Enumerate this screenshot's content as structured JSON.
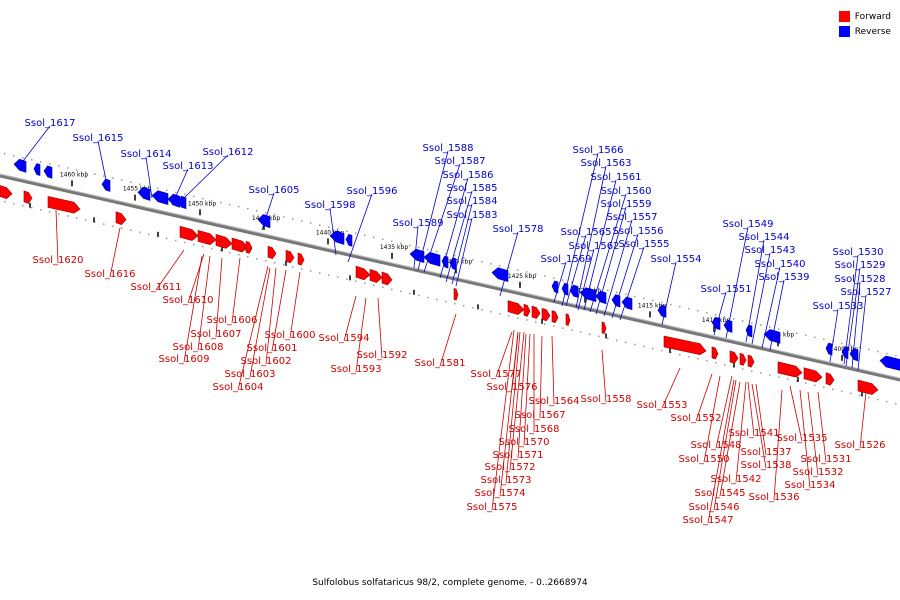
{
  "legend": [
    {
      "label": "Forward",
      "color": "#ff0000"
    },
    {
      "label": "Reverse",
      "color": "#0000ff"
    }
  ],
  "caption": "Sulfolobus solfataricus 98/2, complete genome. - 0..2668974",
  "colors": {
    "forward": "#ff0000",
    "reverse": "#0000ff",
    "axis": "#777777",
    "label_forward": "#cc0000",
    "label_reverse": "#0000cc"
  },
  "ticks": [
    "1460 kbp",
    "1455 kbp",
    "1450 kbp",
    "1445 kbp",
    "1440 kbp",
    "1435 kbp",
    "1430 kbp",
    "1425 kbp",
    "1420 kbp",
    "1415 kbp",
    "1410 kbp",
    "1405 kbp",
    "1400 kbp"
  ],
  "reverse_genes": [
    "Ssol_1617",
    "Ssol_1615",
    "Ssol_1614",
    "Ssol_1613",
    "Ssol_1612",
    "Ssol_1605",
    "Ssol_1598",
    "Ssol_1596",
    "Ssol_1589",
    "Ssol_1588",
    "Ssol_1587",
    "Ssol_1586",
    "Ssol_1585",
    "Ssol_1584",
    "Ssol_1583",
    "Ssol_1578",
    "Ssol_1569",
    "Ssol_1566",
    "Ssol_1565",
    "Ssol_1563",
    "Ssol_1562",
    "Ssol_1561",
    "Ssol_1560",
    "Ssol_1559",
    "Ssol_1557",
    "Ssol_1556",
    "Ssol_1555",
    "Ssol_1554",
    "Ssol_1551",
    "Ssol_1549",
    "Ssol_1544",
    "Ssol_1543",
    "Ssol_1540",
    "Ssol_1539",
    "Ssol_1533",
    "Ssol_1530",
    "Ssol_1529",
    "Ssol_1528",
    "Ssol_1527"
  ],
  "forward_genes": [
    "Ssol_1620",
    "Ssol_1616",
    "Ssol_1611",
    "Ssol_1610",
    "Ssol_1606",
    "Ssol_1607",
    "Ssol_1608",
    "Ssol_1609",
    "Ssol_1600",
    "Ssol_1601",
    "Ssol_1602",
    "Ssol_1603",
    "Ssol_1604",
    "Ssol_1594",
    "Ssol_1592",
    "Ssol_1593",
    "Ssol_1581",
    "Ssol_1577",
    "Ssol_1576",
    "Ssol_1564",
    "Ssol_1567",
    "Ssol_1568",
    "Ssol_1570",
    "Ssol_1571",
    "Ssol_1572",
    "Ssol_1573",
    "Ssol_1574",
    "Ssol_1575",
    "Ssol_1558",
    "Ssol_1553",
    "Ssol_1552",
    "Ssol_1548",
    "Ssol_1550",
    "Ssol_1541",
    "Ssol_1537",
    "Ssol_1538",
    "Ssol_1542",
    "Ssol_1545",
    "Ssol_1546",
    "Ssol_1547",
    "Ssol_1535",
    "Ssol_1536",
    "Ssol_1531",
    "Ssol_1532",
    "Ssol_1534",
    "Ssol_1526"
  ]
}
